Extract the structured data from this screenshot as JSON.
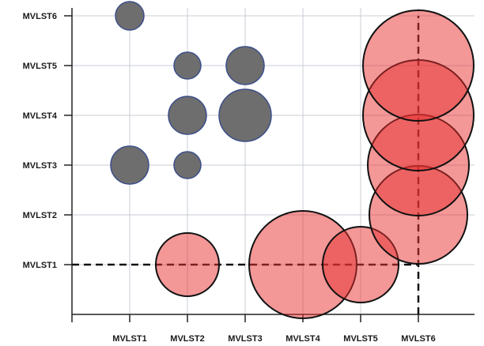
{
  "chart_data": {
    "type": "scatter",
    "title": "",
    "xlabel": "",
    "ylabel": "",
    "x_categories": [
      "MVLST1",
      "MVLST2",
      "MVLST3",
      "MVLST4",
      "MVLST5",
      "MVLST6"
    ],
    "y_categories": [
      "MVLST1",
      "MVLST2",
      "MVLST3",
      "MVLST4",
      "MVLST5",
      "MVLST6"
    ],
    "grid": true,
    "series": [
      {
        "color": "#6e6e6e",
        "stroke": "#3b4f8a",
        "points": [
          {
            "x": "MVLST1",
            "y": "MVLST6",
            "size": 18
          },
          {
            "x": "MVLST2",
            "y": "MVLST5",
            "size": 17
          },
          {
            "x": "MVLST3",
            "y": "MVLST5",
            "size": 24
          },
          {
            "x": "MVLST2",
            "y": "MVLST4",
            "size": 24
          },
          {
            "x": "MVLST3",
            "y": "MVLST4",
            "size": 33
          },
          {
            "x": "MVLST1",
            "y": "MVLST3",
            "size": 24
          },
          {
            "x": "MVLST2",
            "y": "MVLST3",
            "size": 17
          }
        ]
      },
      {
        "color": "#e8302f",
        "stroke": "#111111",
        "points": [
          {
            "x": "MVLST2",
            "y": "MVLST1",
            "size": 40
          },
          {
            "x": "MVLST4",
            "y": "MVLST1",
            "size": 68
          },
          {
            "x": "MVLST5",
            "y": "MVLST1",
            "size": 48
          },
          {
            "x": "MVLST6",
            "y": "MVLST2",
            "size": 62
          },
          {
            "x": "MVLST6",
            "y": "MVLST3",
            "size": 64
          },
          {
            "x": "MVLST6",
            "y": "MVLST4",
            "size": 70
          },
          {
            "x": "MVLST6",
            "y": "MVLST5",
            "size": 70
          }
        ]
      }
    ],
    "reference_lines": [
      {
        "orientation": "horizontal",
        "at": "MVLST1",
        "from": "MVLST0",
        "to": "MVLST6"
      },
      {
        "orientation": "vertical",
        "at": "MVLST6",
        "from": "MVLST0",
        "to": "MVLST6"
      }
    ]
  }
}
